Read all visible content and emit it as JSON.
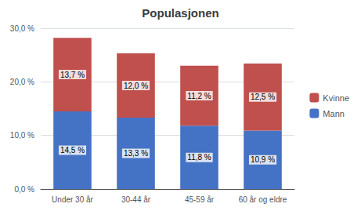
{
  "chart_data": {
    "type": "bar",
    "title": "Populasjonen",
    "categories": [
      "Under 30 år",
      "30-44 år",
      "45-59 år",
      "60 år og eldre"
    ],
    "series": [
      {
        "name": "Mann",
        "color": "#4472C4",
        "values": [
          14.5,
          13.3,
          11.8,
          10.9
        ],
        "value_labels": [
          "14,5 %",
          "13,3 %",
          "11,8 %",
          "10,9 %"
        ]
      },
      {
        "name": "Kvinne",
        "color": "#C0504D",
        "values": [
          13.7,
          12.0,
          11.2,
          12.5
        ],
        "value_labels": [
          "13,7 %",
          "12,0 %",
          "11,2 %",
          "12,5 %"
        ]
      }
    ],
    "stacked": true,
    "data_labels": true,
    "ylim": [
      0,
      30
    ],
    "yticks": [
      {
        "value": 0,
        "label": "0,0 %"
      },
      {
        "value": 10,
        "label": "10,0 %"
      },
      {
        "value": 20,
        "label": "20,0 %"
      },
      {
        "value": 30,
        "label": "30,0 %"
      }
    ],
    "grid": true,
    "legend": "right"
  }
}
